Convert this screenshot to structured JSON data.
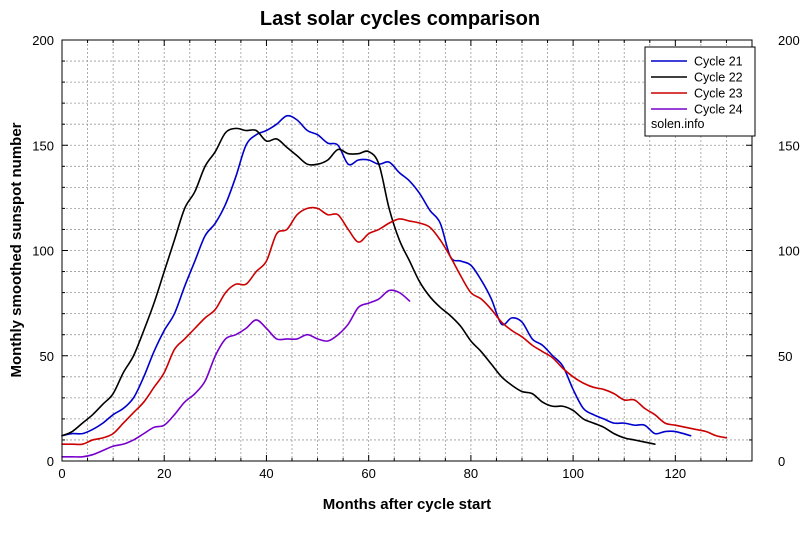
{
  "chart_data": {
    "type": "line",
    "title": "Last solar cycles comparison",
    "xlabel": "Months after cycle start",
    "ylabel": "Monthly smoothed sunspot number",
    "xlim": [
      0,
      135
    ],
    "ylim": [
      0,
      200
    ],
    "x_ticks": [
      0,
      20,
      40,
      60,
      80,
      100,
      120
    ],
    "y_ticks": [
      0,
      50,
      100,
      150,
      200
    ],
    "grid": true,
    "legend_position": "top-right",
    "legend_note": "solen.info",
    "series": [
      {
        "name": "Cycle 21",
        "color": "#0000cc",
        "x": [
          0,
          2,
          4,
          6,
          8,
          10,
          12,
          14,
          16,
          18,
          20,
          22,
          24,
          26,
          28,
          30,
          32,
          34,
          36,
          38,
          40,
          42,
          44,
          46,
          48,
          50,
          52,
          54,
          56,
          58,
          60,
          62,
          64,
          66,
          68,
          70,
          72,
          74,
          76,
          78,
          80,
          82,
          84,
          86,
          88,
          90,
          92,
          94,
          96,
          98,
          100,
          102,
          104,
          106,
          108,
          110,
          112,
          114,
          116,
          118,
          120,
          123
        ],
        "y": [
          12,
          13,
          13,
          15,
          18,
          22,
          25,
          30,
          40,
          52,
          62,
          70,
          83,
          95,
          107,
          113,
          122,
          135,
          150,
          155,
          157,
          160,
          164,
          162,
          157,
          155,
          151,
          150,
          141,
          143,
          143,
          141,
          142,
          137,
          133,
          127,
          119,
          113,
          97,
          95,
          93,
          86,
          77,
          65,
          68,
          66,
          58,
          55,
          50,
          45,
          34,
          25,
          22,
          20,
          18,
          18,
          17,
          17,
          13,
          14,
          14,
          12
        ]
      },
      {
        "name": "Cycle 22",
        "color": "#000000",
        "x": [
          0,
          2,
          4,
          6,
          8,
          10,
          12,
          14,
          16,
          18,
          20,
          22,
          24,
          26,
          28,
          30,
          32,
          34,
          36,
          38,
          40,
          42,
          44,
          46,
          48,
          50,
          52,
          54,
          56,
          58,
          60,
          62,
          64,
          66,
          68,
          70,
          72,
          74,
          76,
          78,
          80,
          82,
          84,
          86,
          88,
          90,
          92,
          94,
          96,
          98,
          100,
          102,
          104,
          106,
          108,
          110,
          112,
          114,
          116
        ],
        "y": [
          12,
          14,
          18,
          22,
          27,
          32,
          42,
          50,
          62,
          75,
          90,
          105,
          120,
          128,
          140,
          147,
          156,
          158,
          157,
          157,
          152,
          153,
          149,
          145,
          141,
          141,
          143,
          148,
          146,
          146,
          147,
          141,
          120,
          105,
          95,
          85,
          78,
          73,
          69,
          64,
          57,
          52,
          46,
          40,
          36,
          33,
          32,
          28,
          26,
          26,
          24,
          20,
          18,
          16,
          13,
          11,
          10,
          9,
          8
        ]
      },
      {
        "name": "Cycle 23",
        "color": "#cc0000",
        "x": [
          0,
          2,
          4,
          6,
          8,
          10,
          12,
          14,
          16,
          18,
          20,
          22,
          24,
          26,
          28,
          30,
          32,
          34,
          36,
          38,
          40,
          42,
          44,
          46,
          48,
          50,
          52,
          54,
          56,
          58,
          60,
          62,
          64,
          66,
          68,
          70,
          72,
          74,
          76,
          78,
          80,
          82,
          84,
          86,
          88,
          90,
          92,
          94,
          96,
          98,
          100,
          102,
          104,
          106,
          108,
          110,
          112,
          114,
          116,
          118,
          120,
          122,
          124,
          126,
          128,
          130
        ],
        "y": [
          8,
          8,
          8,
          10,
          11,
          13,
          18,
          23,
          28,
          35,
          42,
          53,
          58,
          63,
          68,
          72,
          80,
          84,
          84,
          90,
          95,
          108,
          110,
          117,
          120,
          120,
          117,
          117,
          110,
          104,
          108,
          110,
          113,
          115,
          114,
          113,
          111,
          105,
          97,
          88,
          80,
          77,
          72,
          66,
          62,
          59,
          55,
          52,
          49,
          44,
          40,
          37,
          35,
          34,
          32,
          29,
          29,
          25,
          22,
          18,
          17,
          16,
          15,
          14,
          12,
          11
        ]
      },
      {
        "name": "Cycle 24",
        "color": "#7700cc",
        "x": [
          0,
          2,
          4,
          6,
          8,
          10,
          12,
          14,
          16,
          18,
          20,
          22,
          24,
          26,
          28,
          30,
          32,
          34,
          36,
          38,
          40,
          42,
          44,
          46,
          48,
          50,
          52,
          54,
          56,
          58,
          60,
          62,
          64,
          66,
          68
        ],
        "y": [
          2,
          2,
          2,
          3,
          5,
          7,
          8,
          10,
          13,
          16,
          17,
          22,
          28,
          32,
          38,
          50,
          58,
          60,
          63,
          67,
          63,
          58,
          58,
          58,
          60,
          58,
          57,
          60,
          65,
          73,
          75,
          77,
          81,
          80,
          76
        ]
      }
    ]
  }
}
